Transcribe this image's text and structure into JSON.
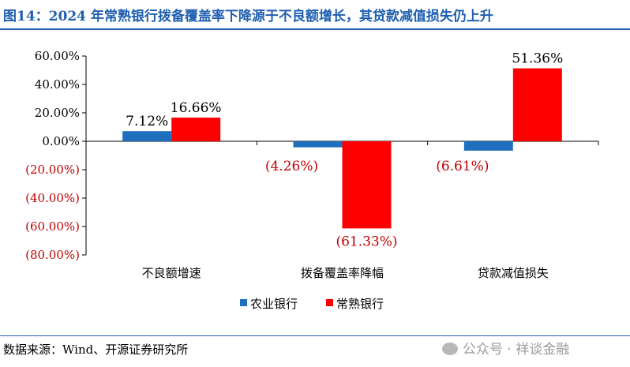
{
  "title": "图14：2024 年常熟银行拨备覆盖率下降源于不良额增长，其贷款减值损失仍上升",
  "source": "数据来源：Wind、开源证券研究所",
  "watermark": "公众号 · 祥谈金融",
  "colors": {
    "title": "#1f5fb0",
    "series1": "#1f6fbf",
    "series2": "#ff0000",
    "negative_tick": "#c00000"
  },
  "chart_data": {
    "type": "bar",
    "categories": [
      "不良额增速",
      "拨备覆盖率降幅",
      "贷款减值损失"
    ],
    "series": [
      {
        "name": "农业银行",
        "values": [
          7.12,
          -4.26,
          -6.61
        ]
      },
      {
        "name": "常熟银行",
        "values": [
          16.66,
          -61.33,
          51.36
        ]
      }
    ],
    "ylim": [
      -80,
      60
    ],
    "yticks": [
      60,
      40,
      20,
      0,
      -20,
      -40,
      -60,
      -80
    ],
    "ytick_labels": [
      "60.00%",
      "40.00%",
      "20.00%",
      "0.00%",
      "(20.00%)",
      "(40.00%)",
      "(60.00%)",
      "(80.00%)"
    ],
    "data_labels": [
      [
        "7.12%",
        "(4.26%)",
        "(6.61%)"
      ],
      [
        "16.66%",
        "(61.33%)",
        "51.36%"
      ]
    ],
    "legend_position": "bottom",
    "grid": false
  }
}
